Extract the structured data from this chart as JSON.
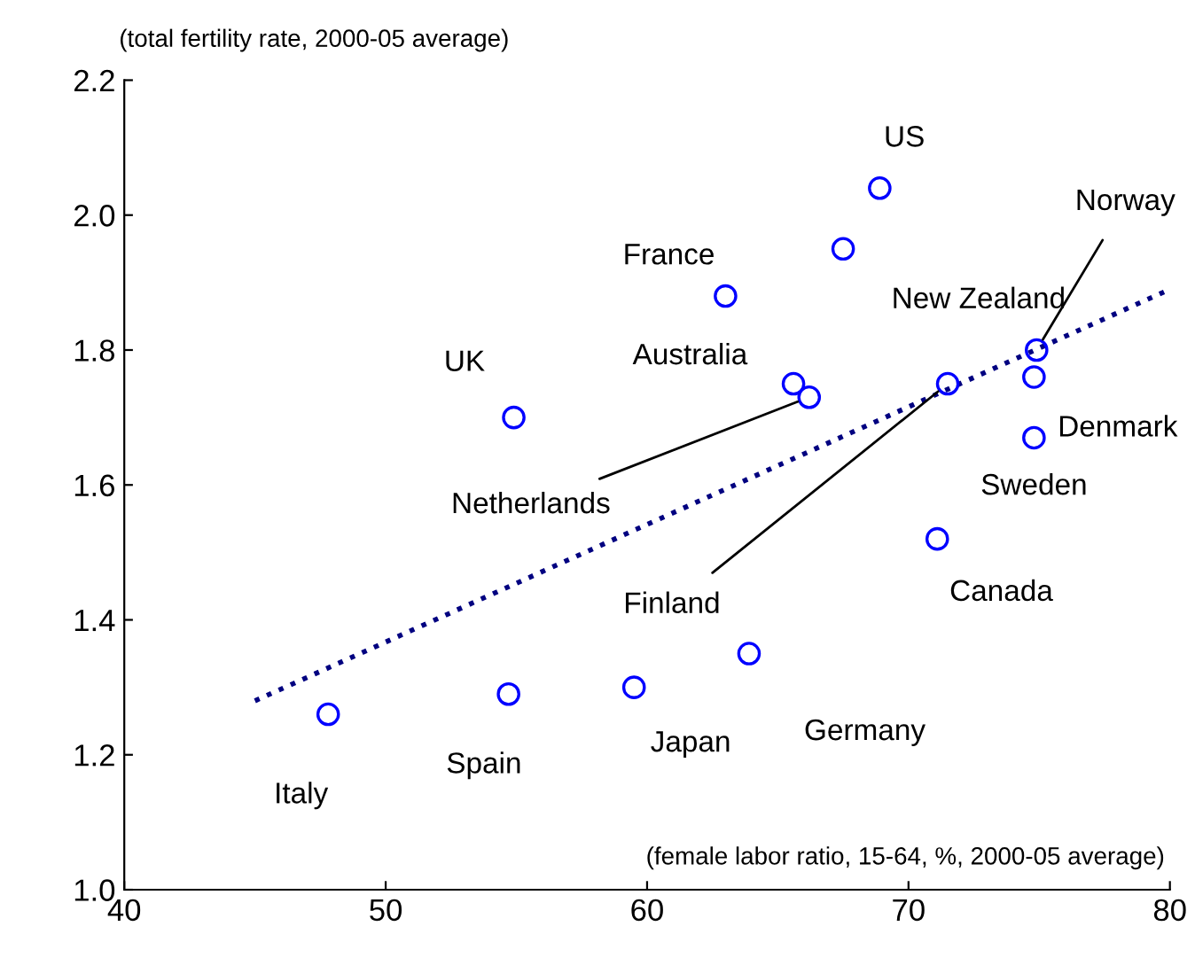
{
  "chart_data": {
    "type": "scatter",
    "ylabel": "(total fertility rate, 2000-05 average)",
    "xlabel": "(female labor ratio, 15-64, %, 2000-05 average)",
    "xlim": [
      40,
      80
    ],
    "xticks": [
      40,
      50,
      60,
      70,
      80
    ],
    "ylim": [
      1.0,
      2.2
    ],
    "yticks": [
      {
        "value": 1.0,
        "label": "1.0"
      },
      {
        "value": 1.2,
        "label": "1.2"
      },
      {
        "value": 1.4,
        "label": "1.4"
      },
      {
        "value": 1.6,
        "label": "1.6"
      },
      {
        "value": 1.8,
        "label": "1.8"
      },
      {
        "value": 2.0,
        "label": "2.0"
      },
      {
        "value": 2.2,
        "label": "2.2"
      }
    ],
    "grid": false,
    "legend": false,
    "series": [
      {
        "color": "#0000ff",
        "marker": "circle",
        "x": [
          47.8,
          54.7,
          59.5,
          63.9,
          54.9,
          63.0,
          67.5,
          68.9,
          65.6,
          66.2,
          71.5,
          71.1,
          74.9,
          74.8,
          74.8
        ],
        "values": [
          1.26,
          1.29,
          1.3,
          1.35,
          1.7,
          1.88,
          1.95,
          2.04,
          1.75,
          1.73,
          1.75,
          1.52,
          1.8,
          1.76,
          1.67
        ]
      },
      {
        "type": "line",
        "color": "#000080",
        "line_style": "dotted",
        "marker": "none",
        "x": [
          45,
          80
        ],
        "values": [
          1.28,
          1.89
        ]
      }
    ],
    "annotations": [
      {
        "text": "Italy",
        "x": 47.8,
        "y": 1.26
      },
      {
        "text": "Spain",
        "x": 54.7,
        "y": 1.29
      },
      {
        "text": "Japan",
        "x": 59.5,
        "y": 1.3
      },
      {
        "text": "Germany",
        "x": 63.9,
        "y": 1.35
      },
      {
        "text": "UK",
        "x": 54.9,
        "y": 1.7
      },
      {
        "text": "France",
        "x": 63.0,
        "y": 1.88
      },
      {
        "text": "New Zealand",
        "x": 67.5,
        "y": 1.95
      },
      {
        "text": "US",
        "x": 68.9,
        "y": 2.04
      },
      {
        "text": "Australia",
        "x": 65.6,
        "y": 1.75
      },
      {
        "text": "Netherlands",
        "x": 66.2,
        "y": 1.73
      },
      {
        "text": "Finland",
        "x": 71.5,
        "y": 1.75
      },
      {
        "text": "Canada",
        "x": 71.1,
        "y": 1.52
      },
      {
        "text": "Norway",
        "x": 74.9,
        "y": 1.8
      },
      {
        "text": "Denmark",
        "x": 74.8,
        "y": 1.76
      },
      {
        "text": "Sweden",
        "x": 74.8,
        "y": 1.67
      }
    ]
  }
}
